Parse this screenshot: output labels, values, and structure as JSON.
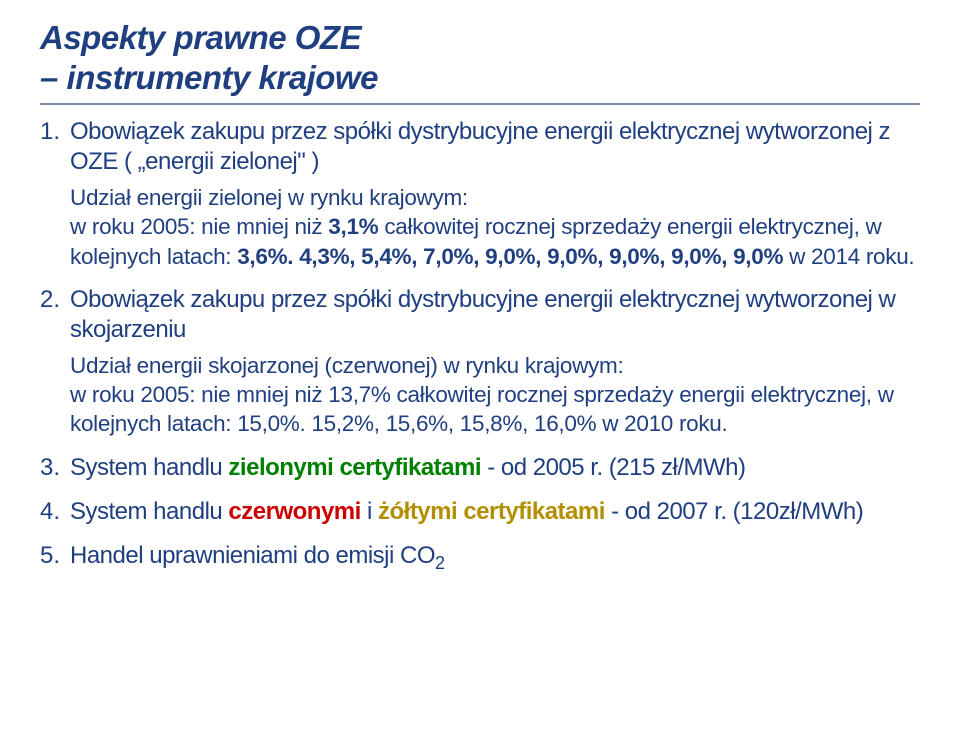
{
  "title": {
    "line1": "Aspekty prawne OZE",
    "line2": "– instrumenty krajowe"
  },
  "items": [
    {
      "num": "1.",
      "text": "Obowiązek zakupu przez spółki dystrybucyjne energii elektrycznej wytworzonej z OZE ( „energii zielonej\" )",
      "sub": {
        "lead": "Udział energii zielonej w rynku krajowym:",
        "detail_pre": "w roku 2005: nie mniej niż ",
        "detail_bold1": "3,1%",
        "detail_mid": " całkowitej rocznej sprzedaży energii elektrycznej, w kolejnych latach: ",
        "detail_bold2": "3,6%. 4,3%, 5,4%, 7,0%, 9,0%, 9,0%, 9,0%, 9,0%, 9,0%",
        "detail_post": " w 2014 roku."
      }
    },
    {
      "num": "2.",
      "text": "Obowiązek zakupu przez spółki dystrybucyjne energii elektrycznej wytworzonej w skojarzeniu",
      "sub": {
        "lead": "Udział energii skojarzonej (czerwonej) w rynku krajowym:",
        "detail_pre": "w roku 2005: nie mniej niż 13,7% całkowitej rocznej sprzedaży energii elektrycznej, w kolejnych latach: 15,0%. 15,2%, 15,6%, 15,8%, 16,0% w 2010 roku.",
        "detail_bold1": "",
        "detail_mid": "",
        "detail_bold2": "",
        "detail_post": ""
      }
    },
    {
      "num": "3.",
      "pre": "System handlu ",
      "green": "zielonymi certyfikatami",
      "post": " - od 2005 r. (215 zł/MWh)"
    },
    {
      "num": "4.",
      "pre": "System handlu ",
      "red": "czerwonymi",
      "mid": " i ",
      "yellow": "żółtymi certyfikatami",
      "post": " - od 2007 r. (120zł/MWh)"
    },
    {
      "num": "5.",
      "pre": "Handel uprawnieniami do emisji CO",
      "sub2": "2"
    }
  ]
}
